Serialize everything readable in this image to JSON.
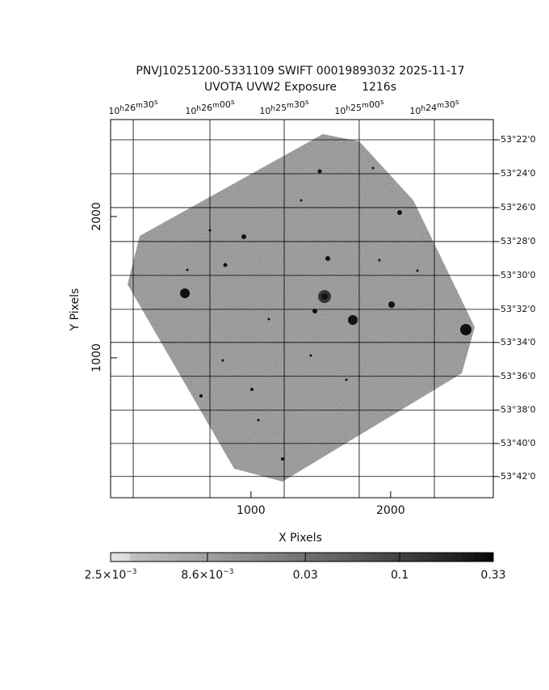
{
  "chart_data": {
    "type": "image",
    "title": "PNVJ10251200-5331109 SWIFT 00019893032 2025-11-17",
    "subtitle": "UVOTA UVW2 Exposure       1216s",
    "x_label": "X Pixels",
    "y_label": "Y Pixels",
    "xlim": [
      -5,
      2735
    ],
    "ylim": [
      10,
      2686
    ],
    "xticks": [
      1000,
      2000
    ],
    "yticks": [
      1000,
      2000
    ],
    "x2ticks": [
      {
        "value": 157,
        "label": "10h26m30s"
      },
      {
        "value": 706,
        "label": "10h26m00s"
      },
      {
        "value": 1238,
        "label": "10h25m30s"
      },
      {
        "value": 1775,
        "label": "10h25m00s"
      },
      {
        "value": 2313,
        "label": "10h24m30s"
      }
    ],
    "y2ticks": [
      {
        "value": 2543,
        "label": "-53°22'0"
      },
      {
        "value": 2303,
        "label": "-53°24'0"
      },
      {
        "value": 2063,
        "label": "-53°26'0"
      },
      {
        "value": 1823,
        "label": "-53°28'0"
      },
      {
        "value": 1583,
        "label": "-53°30'0"
      },
      {
        "value": 1343,
        "label": "-53°32'0"
      },
      {
        "value": 1109,
        "label": "-53°34'0"
      },
      {
        "value": 869,
        "label": "-53°36'0"
      },
      {
        "value": 629,
        "label": "-53°38'0"
      },
      {
        "value": 394,
        "label": "-53°40'0"
      },
      {
        "value": 160,
        "label": "-53°42'0"
      }
    ],
    "grid": true,
    "colorbar": {
      "log": true,
      "lim": [
        0.0025,
        0.33
      ],
      "ticks": [
        {
          "value": 0.0025,
          "label": "2.5×10−3"
        },
        {
          "value": 0.0086,
          "label": "8.6×10−3"
        },
        {
          "value": 0.03,
          "label": "0.03"
        },
        {
          "value": 0.1,
          "label": "0.1"
        },
        {
          "value": 0.33,
          "label": "0.33"
        }
      ]
    }
  }
}
